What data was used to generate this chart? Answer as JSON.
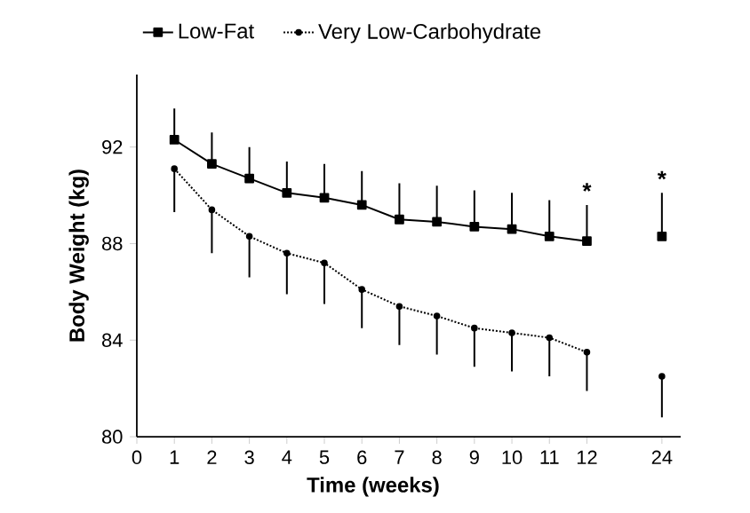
{
  "chart_data": {
    "type": "line",
    "xlabel": "Time (weeks)",
    "ylabel": "Body Weight (kg)",
    "ylim": [
      80,
      95
    ],
    "yticks": [
      80,
      84,
      88,
      92
    ],
    "legend": "top",
    "categories": [
      "0",
      "1",
      "2",
      "3",
      "4",
      "5",
      "6",
      "7",
      "8",
      "9",
      "10",
      "11",
      "12",
      null,
      "24"
    ],
    "series": [
      {
        "name": "Low-Fat",
        "color": "#000000",
        "marker": "square",
        "line_style": "solid",
        "values": [
          null,
          92.3,
          91.3,
          90.7,
          90.1,
          89.9,
          89.6,
          89.0,
          88.9,
          88.7,
          88.6,
          88.3,
          88.1,
          null,
          88.3
        ],
        "errors": [
          null,
          [
            92.3,
            93.6
          ],
          [
            91.3,
            92.6
          ],
          [
            90.7,
            92.0
          ],
          [
            90.1,
            91.4
          ],
          [
            89.9,
            91.3
          ],
          [
            89.6,
            91.0
          ],
          [
            89.0,
            90.5
          ],
          [
            88.9,
            90.4
          ],
          [
            88.7,
            90.2
          ],
          [
            88.6,
            90.1
          ],
          [
            88.3,
            89.8
          ],
          [
            88.1,
            89.6
          ],
          null,
          [
            88.3,
            90.1
          ]
        ]
      },
      {
        "name": "Very Low-Carbohydrate",
        "color": "#000000",
        "marker": "circle",
        "line_style": "dotted",
        "values": [
          null,
          91.1,
          89.4,
          88.3,
          87.6,
          87.2,
          86.1,
          85.4,
          85.0,
          84.5,
          84.3,
          84.1,
          83.5,
          null,
          82.5
        ],
        "errors": [
          null,
          [
            89.3,
            91.1
          ],
          [
            87.6,
            89.4
          ],
          [
            86.6,
            88.3
          ],
          [
            85.9,
            87.6
          ],
          [
            85.5,
            87.2
          ],
          [
            84.5,
            86.1
          ],
          [
            83.8,
            85.4
          ],
          [
            83.4,
            85.0
          ],
          [
            82.9,
            84.5
          ],
          [
            82.7,
            84.3
          ],
          [
            82.5,
            84.1
          ],
          [
            81.9,
            83.5
          ],
          null,
          [
            80.8,
            82.5
          ]
        ]
      }
    ],
    "annotations": [
      {
        "text": "*",
        "x": "12",
        "y": 89.6
      },
      {
        "text": "*",
        "x": "24",
        "y": 90.1
      }
    ]
  }
}
